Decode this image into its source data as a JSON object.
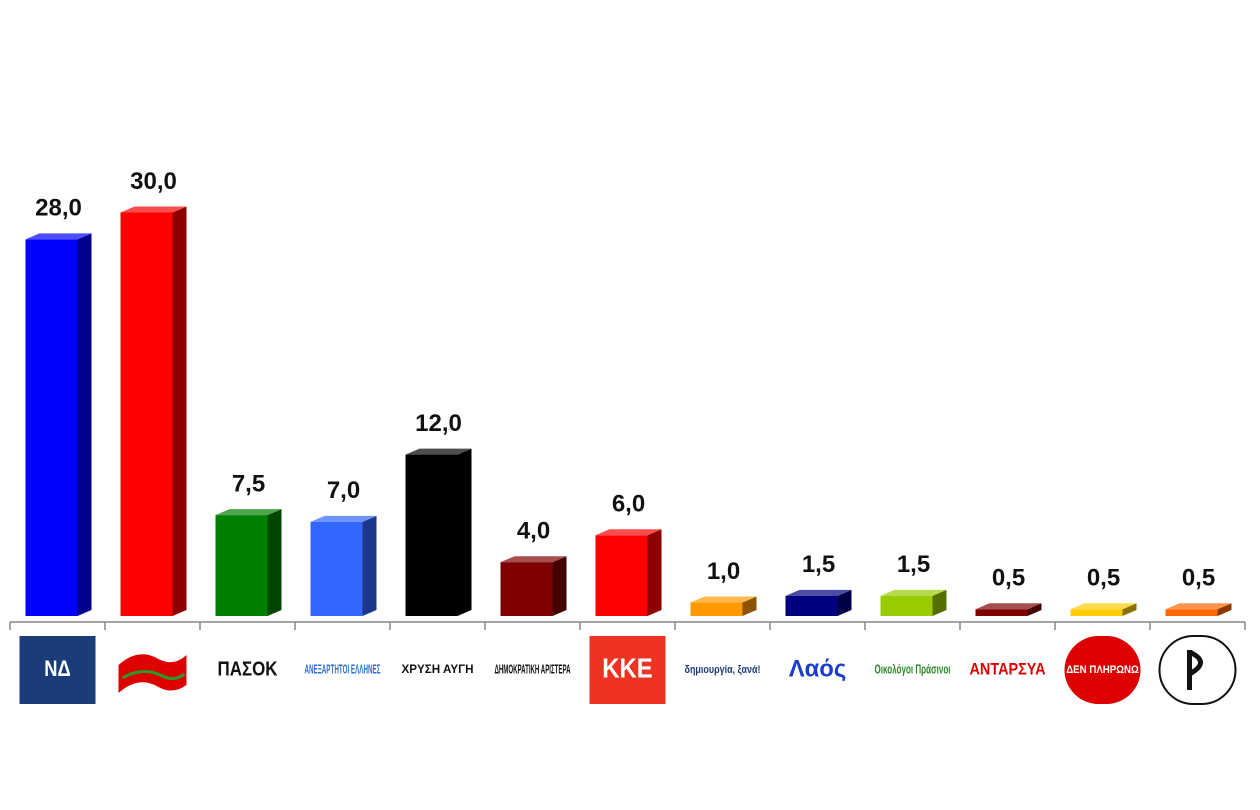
{
  "chart_data": {
    "type": "bar",
    "categories": [
      "ΝΔ",
      null,
      "ΠΑΣΟΚ",
      "ΑΝΕΞΑΡΤΗΤΟΙ ΕΛΛΗΝΕΣ",
      "ΧΡΥΣΗ ΑΥΓΗ",
      "ΔΗΜΟΚΡΑΤΙΚΗ ΑΡΙΣΤΕΡΑ",
      "ΚΚΕ",
      "δημιουργία, ξανά!",
      "Λαός",
      "Οικολόγοι Πράσινοι",
      "ΑΝΤΑΡΣΥΑ",
      "ΔΕΝ ΠΛΗΡΩΝΩ",
      null
    ],
    "values": [
      28.0,
      30.0,
      7.5,
      7.0,
      12.0,
      4.0,
      6.0,
      1.0,
      1.5,
      1.5,
      0.5,
      0.5,
      0.5
    ],
    "value_labels": [
      "28,0",
      "30,0",
      "7,5",
      "7,0",
      "12,0",
      "4,0",
      "6,0",
      "1,0",
      "1,5",
      "1,5",
      "0,5",
      "0,5",
      "0,5"
    ],
    "colors": [
      "#0000ff",
      "#ff0000",
      "#008000",
      "#3366ff",
      "#000000",
      "#800000",
      "#ff0000",
      "#ff9900",
      "#000080",
      "#99cc00",
      "#800000",
      "#ffcc00",
      "#ff6600"
    ]
  }
}
